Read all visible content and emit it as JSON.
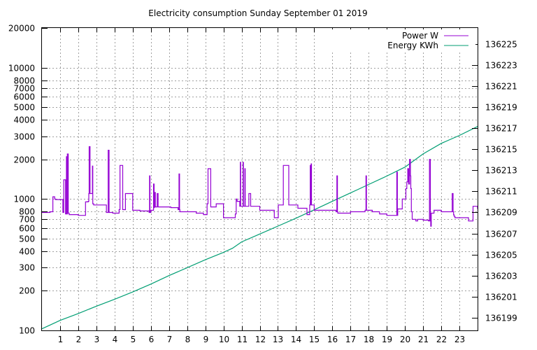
{
  "chart_data": {
    "type": "line",
    "title": "Electricity consumption Sunday September 01 2019",
    "xlabel": "",
    "ylabel": "",
    "y2label": "",
    "xlim": [
      0,
      24
    ],
    "x_ticks": [
      "1",
      "2",
      "3",
      "4",
      "5",
      "6",
      "7",
      "8",
      "9",
      "10",
      "11",
      "12",
      "13",
      "14",
      "15",
      "16",
      "17",
      "18",
      "19",
      "20",
      "21",
      "22",
      "23"
    ],
    "y_scale": "log",
    "ylim": [
      100,
      20000
    ],
    "y_ticks": [
      "100",
      "200",
      "300",
      "400",
      "500",
      "600",
      "700",
      "800",
      "1000",
      "2000",
      "3000",
      "4000",
      "5000",
      "6000",
      "7000",
      "8000",
      "10000",
      "20000"
    ],
    "y2lim": [
      136197.8,
      136226.5
    ],
    "y2_ticks": [
      "136199",
      "136201",
      "136203",
      "136205",
      "136207",
      "136209",
      "136211",
      "136213",
      "136215",
      "136217",
      "136219",
      "136221",
      "136223",
      "136225"
    ],
    "grid": true,
    "legend_position": "top-right",
    "colors": {
      "power": "#9400d3",
      "energy": "#009e73"
    },
    "series": [
      {
        "name": "Power W",
        "axis": "left",
        "x": [
          0.0,
          0.05,
          0.45,
          0.5,
          0.6,
          0.7,
          0.72,
          0.75,
          1.05,
          1.15,
          1.17,
          1.2,
          1.25,
          1.3,
          1.35,
          1.37,
          1.4,
          1.45,
          1.5,
          1.9,
          2.0,
          2.4,
          2.55,
          2.58,
          2.6,
          2.65,
          2.75,
          2.78,
          2.8,
          2.85,
          3.0,
          3.5,
          3.55,
          3.6,
          3.65,
          3.7,
          3.9,
          4.1,
          4.25,
          4.28,
          4.3,
          4.45,
          4.6,
          5.0,
          5.4,
          5.9,
          5.93,
          5.95,
          6.0,
          6.15,
          6.18,
          6.2,
          6.25,
          6.3,
          6.35,
          6.4,
          7.1,
          7.5,
          7.55,
          7.58,
          7.6,
          8.0,
          8.5,
          8.9,
          9.1,
          9.13,
          9.15,
          9.3,
          9.6,
          9.65,
          10.0,
          10.5,
          10.65,
          10.7,
          10.75,
          10.9,
          10.93,
          10.95,
          11.05,
          11.08,
          11.1,
          11.15,
          11.18,
          11.2,
          11.3,
          11.4,
          11.5,
          12.0,
          12.4,
          12.8,
          13.0,
          13.02,
          13.05,
          13.3,
          13.6,
          14.0,
          14.1,
          14.6,
          14.7,
          14.75,
          14.78,
          14.8,
          14.83,
          14.85,
          15.0,
          15.4,
          15.8,
          16.2,
          16.25,
          16.28,
          16.3,
          16.4,
          17.0,
          17.5,
          17.8,
          17.85,
          17.88,
          17.9,
          18.2,
          18.5,
          18.6,
          19.0,
          19.3,
          19.5,
          19.55,
          19.58,
          19.6,
          19.8,
          19.85,
          20.0,
          20.05,
          20.1,
          20.15,
          20.2,
          20.22,
          20.25,
          20.3,
          20.32,
          20.35,
          20.4,
          20.6,
          20.7,
          21.0,
          21.3,
          21.35,
          21.4,
          21.42,
          21.45,
          21.5,
          21.6,
          22.0,
          22.5,
          22.6,
          22.65,
          22.68,
          22.7,
          22.75,
          23.2,
          23.5,
          23.75,
          23.8,
          24.0
        ],
        "y": [
          790,
          790,
          800,
          800,
          1040,
          1000,
          1000,
          990,
          990,
          790,
          790,
          1400,
          1400,
          770,
          2100,
          770,
          2200,
          780,
          760,
          760,
          750,
          950,
          960,
          1100,
          2500,
          1100,
          1100,
          1780,
          920,
          900,
          900,
          900,
          790,
          790,
          2350,
          790,
          780,
          780,
          830,
          830,
          1800,
          830,
          1100,
          820,
          810,
          790,
          1500,
          790,
          820,
          1300,
          860,
          1120,
          870,
          870,
          1100,
          870,
          860,
          830,
          1550,
          830,
          800,
          800,
          780,
          760,
          920,
          920,
          1700,
          870,
          920,
          920,
          720,
          720,
          770,
          1000,
          960,
          880,
          1900,
          880,
          880,
          1900,
          880,
          880,
          1700,
          880,
          880,
          1100,
          880,
          820,
          820,
          720,
          720,
          900,
          900,
          1800,
          900,
          900,
          850,
          760,
          760,
          900,
          1800,
          900,
          1850,
          900,
          820,
          820,
          820,
          800,
          1500,
          800,
          780,
          780,
          800,
          800,
          820,
          1500,
          820,
          820,
          800,
          800,
          770,
          750,
          750,
          750,
          1600,
          750,
          840,
          840,
          1000,
          1000,
          1200,
          1350,
          1700,
          1300,
          1300,
          2000,
          1500,
          1200,
          800,
          700,
          680,
          700,
          690,
          680,
          2000,
          680,
          620,
          780,
          780,
          820,
          800,
          800,
          1100,
          800,
          760,
          740,
          720,
          720,
          680,
          880,
          880,
          840
        ]
      },
      {
        "name": "Energy KWh",
        "axis": "right",
        "x": [
          0,
          1,
          2,
          3,
          4,
          5,
          6,
          7,
          8,
          9,
          10,
          10.5,
          11,
          12,
          13,
          14,
          15,
          16,
          17,
          18,
          19,
          20,
          21,
          22,
          23,
          24
        ],
        "y": [
          136197.95,
          136198.75,
          136199.4,
          136200.1,
          136200.75,
          136201.45,
          136202.2,
          136203.0,
          136203.75,
          136204.5,
          136205.2,
          136205.6,
          136206.2,
          136206.95,
          136207.7,
          136208.45,
          136209.25,
          136210.05,
          136210.85,
          136211.65,
          136212.45,
          136213.3,
          136214.55,
          136215.55,
          136216.3,
          136217.15
        ]
      }
    ]
  }
}
